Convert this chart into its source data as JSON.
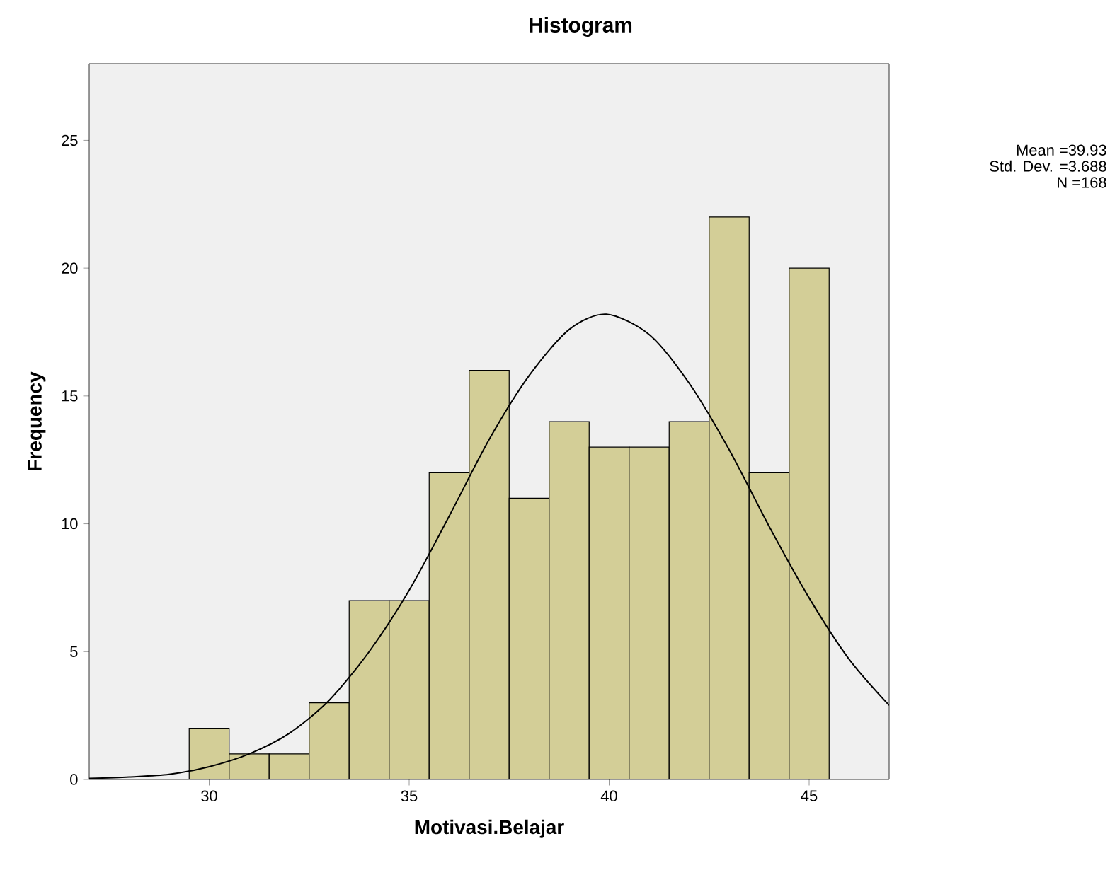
{
  "chart_data": {
    "type": "histogram",
    "title": "Histogram",
    "xlabel": "Motivasi.Belajar",
    "ylabel": "Frequency",
    "bins": [
      29.5,
      30.5,
      31.5,
      32.5,
      33.5,
      34.5,
      35.5,
      36.5,
      37.5,
      38.5,
      39.5,
      40.5,
      41.5,
      42.5,
      43.5,
      44.5,
      45.5
    ],
    "values": [
      2,
      1,
      1,
      3,
      7,
      7,
      12,
      16,
      11,
      14,
      13,
      13,
      14,
      22,
      12,
      20
    ],
    "color": "#d3ce97",
    "series": [
      {
        "type": "line",
        "color": "#000000",
        "x": [
          27,
          28,
          29,
          30,
          31,
          32,
          33,
          34,
          35,
          36,
          37,
          38,
          39,
          39.93,
          41,
          42,
          43,
          44,
          45,
          46,
          47
        ],
        "values": [
          0.04,
          0.1,
          0.2,
          0.5,
          1.0,
          1.8,
          3.1,
          5.0,
          7.4,
          10.3,
          13.3,
          15.8,
          17.6,
          18.2,
          17.4,
          15.5,
          12.9,
          9.9,
          7.1,
          4.7,
          2.9
        ]
      }
    ],
    "xlim": [
      27,
      47
    ],
    "ylim": [
      0,
      28
    ],
    "xticks": [
      30,
      35,
      40,
      45
    ],
    "yticks": [
      0,
      5,
      10,
      15,
      20,
      25
    ],
    "grid": false,
    "annotations": [
      "Mean =39.93",
      "Std. Dev. =3.688",
      "N =168"
    ]
  }
}
